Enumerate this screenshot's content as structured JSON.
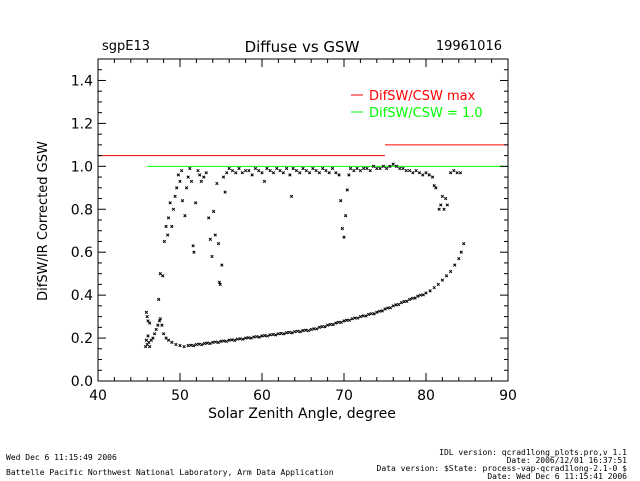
{
  "header": {
    "station": "sgpE13",
    "date": "19961016"
  },
  "footer": {
    "left_line1": "Wed Dec  6 11:15:49 2006",
    "left_line2": "Battelle Pacific Northwest National Laboratory, Arm Data Application",
    "right_line1": "IDL version: qcrad1long_plots.pro,v 1.1",
    "right_line2": "Date: 2006/12/01 16:37:51",
    "right_line3": "Data version: $State: process-vap-qcrad1long-2.1-0 $",
    "right_line4": "Date: Wed Dec  6 11:15:41 2006"
  },
  "colors": {
    "max_line": "#ff0000",
    "ref_line": "#00ff00",
    "points": "#000000"
  },
  "chart_data": {
    "type": "scatter",
    "title": "Diffuse vs GSW",
    "xlabel": "Solar Zenith Angle, degree",
    "ylabel": "DifSW/IR Corrected GSW",
    "xlim": [
      40,
      90
    ],
    "ylim": [
      0.0,
      1.5
    ],
    "xticks": [
      40,
      50,
      60,
      70,
      80,
      90
    ],
    "yticks": [
      0.0,
      0.2,
      0.4,
      0.6,
      0.8,
      1.0,
      1.2,
      1.4
    ],
    "xtick_labels": [
      "40",
      "50",
      "60",
      "70",
      "80",
      "90"
    ],
    "ytick_labels": [
      "0.0",
      "0.2",
      "0.4",
      "0.6",
      "0.8",
      "1.0",
      "1.2",
      "1.4"
    ],
    "legend": [
      {
        "label": "DifSW/CSW max",
        "color": "#ff0000"
      },
      {
        "label": "DifSW/CSW = 1.0",
        "color": "#00ff00"
      }
    ],
    "reference_lines": [
      {
        "name": "difsw-csw-max",
        "segments": [
          {
            "x": [
              40,
              75
            ],
            "y": 1.05
          },
          {
            "x": [
              75,
              90
            ],
            "y": 1.1
          }
        ]
      },
      {
        "name": "difsw-csw-1",
        "segments": [
          {
            "x": [
              46,
              90
            ],
            "y": 1.0
          }
        ]
      }
    ],
    "series": [
      {
        "name": "lower-branch",
        "points": [
          [
            45.8,
            0.16
          ],
          [
            45.9,
            0.19
          ],
          [
            46.0,
            0.17
          ],
          [
            46.1,
            0.21
          ],
          [
            46.2,
            0.18
          ],
          [
            46.3,
            0.16
          ],
          [
            46.5,
            0.19
          ],
          [
            46.7,
            0.2
          ],
          [
            46.9,
            0.22
          ],
          [
            47.1,
            0.24
          ],
          [
            47.3,
            0.26
          ],
          [
            47.5,
            0.28
          ],
          [
            47.6,
            0.29
          ],
          [
            47.8,
            0.26
          ],
          [
            48.0,
            0.22
          ],
          [
            48.3,
            0.2
          ],
          [
            48.6,
            0.19
          ],
          [
            49.0,
            0.18
          ],
          [
            49.5,
            0.17
          ],
          [
            50.0,
            0.165
          ],
          [
            50.5,
            0.16
          ],
          [
            51.0,
            0.165
          ],
          [
            52.0,
            0.17
          ],
          [
            53.0,
            0.175
          ],
          [
            54.0,
            0.18
          ],
          [
            55.0,
            0.185
          ],
          [
            56.0,
            0.19
          ],
          [
            57.0,
            0.195
          ],
          [
            58.0,
            0.2
          ],
          [
            59.0,
            0.205
          ],
          [
            60.0,
            0.21
          ],
          [
            61.0,
            0.215
          ],
          [
            62.0,
            0.22
          ],
          [
            63.0,
            0.225
          ],
          [
            64.0,
            0.23
          ],
          [
            65.0,
            0.235
          ],
          [
            66.0,
            0.24
          ],
          [
            67.0,
            0.25
          ],
          [
            68.0,
            0.26
          ],
          [
            69.0,
            0.27
          ],
          [
            70.0,
            0.28
          ],
          [
            71.0,
            0.29
          ],
          [
            72.0,
            0.3
          ],
          [
            73.0,
            0.31
          ],
          [
            74.0,
            0.32
          ],
          [
            75.0,
            0.335
          ],
          [
            76.0,
            0.35
          ],
          [
            77.0,
            0.365
          ],
          [
            78.0,
            0.38
          ],
          [
            79.0,
            0.395
          ],
          [
            80.0,
            0.41
          ],
          [
            80.5,
            0.42
          ],
          [
            81.0,
            0.435
          ],
          [
            81.5,
            0.45
          ],
          [
            82.0,
            0.47
          ],
          [
            82.5,
            0.49
          ],
          [
            83.0,
            0.51
          ],
          [
            83.5,
            0.54
          ],
          [
            84.0,
            0.57
          ],
          [
            84.3,
            0.6
          ],
          [
            84.6,
            0.64
          ]
        ]
      },
      {
        "name": "upper-branch",
        "points": [
          [
            45.9,
            0.32
          ],
          [
            46.0,
            0.3
          ],
          [
            46.1,
            0.28
          ],
          [
            46.3,
            0.27
          ],
          [
            47.4,
            0.38
          ],
          [
            47.6,
            0.5
          ],
          [
            47.9,
            0.49
          ],
          [
            48.1,
            0.65
          ],
          [
            48.3,
            0.72
          ],
          [
            48.5,
            0.68
          ],
          [
            48.6,
            0.76
          ],
          [
            48.8,
            0.83
          ],
          [
            49.0,
            0.72
          ],
          [
            49.2,
            0.8
          ],
          [
            49.4,
            0.86
          ],
          [
            49.6,
            0.9
          ],
          [
            49.8,
            0.96
          ],
          [
            50.0,
            0.93
          ],
          [
            50.2,
            0.98
          ],
          [
            50.3,
            0.84
          ],
          [
            50.6,
            0.77
          ],
          [
            50.8,
            0.9
          ],
          [
            51.0,
            0.95
          ],
          [
            51.2,
            0.99
          ],
          [
            51.4,
            0.93
          ],
          [
            51.6,
            0.63
          ],
          [
            51.7,
            0.6
          ],
          [
            51.9,
            0.83
          ],
          [
            52.2,
            0.98
          ],
          [
            52.4,
            0.96
          ],
          [
            52.6,
            0.93
          ],
          [
            52.9,
            0.95
          ],
          [
            53.2,
            0.97
          ],
          [
            53.5,
            0.76
          ],
          [
            53.7,
            0.66
          ],
          [
            53.9,
            0.58
          ],
          [
            54.1,
            0.79
          ],
          [
            54.3,
            0.68
          ],
          [
            54.5,
            0.92
          ],
          [
            54.7,
            0.64
          ],
          [
            54.8,
            0.46
          ],
          [
            54.9,
            0.45
          ],
          [
            55.1,
            0.54
          ],
          [
            55.3,
            0.95
          ],
          [
            55.5,
            0.88
          ],
          [
            55.7,
            0.97
          ],
          [
            56.0,
            0.99
          ],
          [
            56.4,
            0.98
          ],
          [
            56.8,
            0.97
          ],
          [
            57.2,
            0.99
          ],
          [
            57.6,
            0.97
          ],
          [
            58.0,
            0.98
          ],
          [
            58.4,
            0.98
          ],
          [
            58.8,
            0.96
          ],
          [
            59.2,
            0.99
          ],
          [
            59.6,
            0.98
          ],
          [
            60.0,
            0.97
          ],
          [
            60.3,
            0.93
          ],
          [
            60.6,
            0.99
          ],
          [
            61.0,
            0.98
          ],
          [
            61.4,
            0.97
          ],
          [
            61.8,
            0.99
          ],
          [
            62.2,
            0.98
          ],
          [
            62.6,
            0.97
          ],
          [
            63.0,
            0.99
          ],
          [
            63.4,
            0.96
          ],
          [
            63.6,
            0.86
          ],
          [
            63.8,
            0.99
          ],
          [
            64.2,
            0.98
          ],
          [
            64.6,
            0.97
          ],
          [
            65.0,
            0.99
          ],
          [
            65.4,
            0.98
          ],
          [
            65.8,
            0.97
          ],
          [
            66.2,
            0.99
          ],
          [
            66.6,
            0.98
          ],
          [
            67.0,
            0.97
          ],
          [
            67.4,
            0.99
          ],
          [
            67.8,
            0.98
          ],
          [
            68.2,
            0.97
          ],
          [
            68.6,
            0.99
          ],
          [
            69.0,
            0.97
          ],
          [
            69.4,
            0.96
          ],
          [
            69.6,
            0.84
          ],
          [
            69.8,
            0.71
          ],
          [
            70.0,
            0.67
          ],
          [
            70.2,
            0.77
          ],
          [
            70.4,
            0.89
          ],
          [
            70.6,
            0.96
          ],
          [
            70.8,
            0.99
          ],
          [
            71.2,
            0.98
          ],
          [
            71.6,
            0.99
          ],
          [
            72.0,
            0.98
          ],
          [
            72.4,
            0.99
          ],
          [
            72.8,
            0.99
          ],
          [
            73.2,
            0.98
          ],
          [
            73.6,
            1.0
          ],
          [
            74.0,
            0.99
          ],
          [
            74.4,
            0.99
          ],
          [
            74.8,
            1.0
          ],
          [
            75.2,
            0.99
          ],
          [
            75.6,
            1.0
          ],
          [
            76.0,
            1.01
          ],
          [
            76.4,
            1.0
          ],
          [
            76.8,
            0.99
          ],
          [
            77.2,
            0.99
          ],
          [
            77.6,
            0.98
          ],
          [
            78.0,
            0.98
          ],
          [
            78.4,
            0.97
          ],
          [
            78.8,
            0.98
          ],
          [
            79.2,
            0.97
          ],
          [
            79.6,
            0.96
          ],
          [
            80.0,
            0.97
          ],
          [
            80.4,
            0.96
          ],
          [
            80.8,
            0.95
          ],
          [
            81.0,
            0.91
          ],
          [
            81.2,
            0.9
          ],
          [
            81.6,
            0.8
          ],
          [
            81.8,
            0.82
          ],
          [
            82.0,
            0.86
          ],
          [
            82.2,
            0.8
          ],
          [
            82.4,
            0.85
          ],
          [
            82.6,
            0.82
          ],
          [
            83.0,
            0.97
          ],
          [
            83.4,
            0.98
          ],
          [
            83.8,
            0.97
          ],
          [
            84.2,
            0.97
          ]
        ]
      }
    ]
  }
}
